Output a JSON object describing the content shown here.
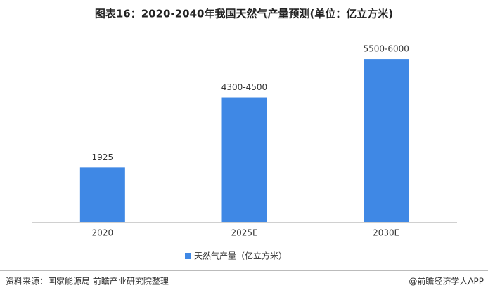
{
  "chart_data": {
    "type": "bar",
    "title": "图表16：2020-2040年我国天然气产量预测(单位：亿立方米)",
    "categories": [
      "2020",
      "2025E",
      "2030E"
    ],
    "series": [
      {
        "name": "天然气产量（亿立方米）",
        "color": "#3f88e5",
        "values": [
          1925,
          4400,
          5750
        ],
        "value_labels": [
          "1925",
          "4300-4500",
          "5500-6000"
        ]
      }
    ],
    "ylim": [
      0,
      6000
    ]
  },
  "footer": {
    "source": "资料来源：国家能源局 前瞻产业研究院整理",
    "brand": "@前瞻经济学人APP"
  }
}
